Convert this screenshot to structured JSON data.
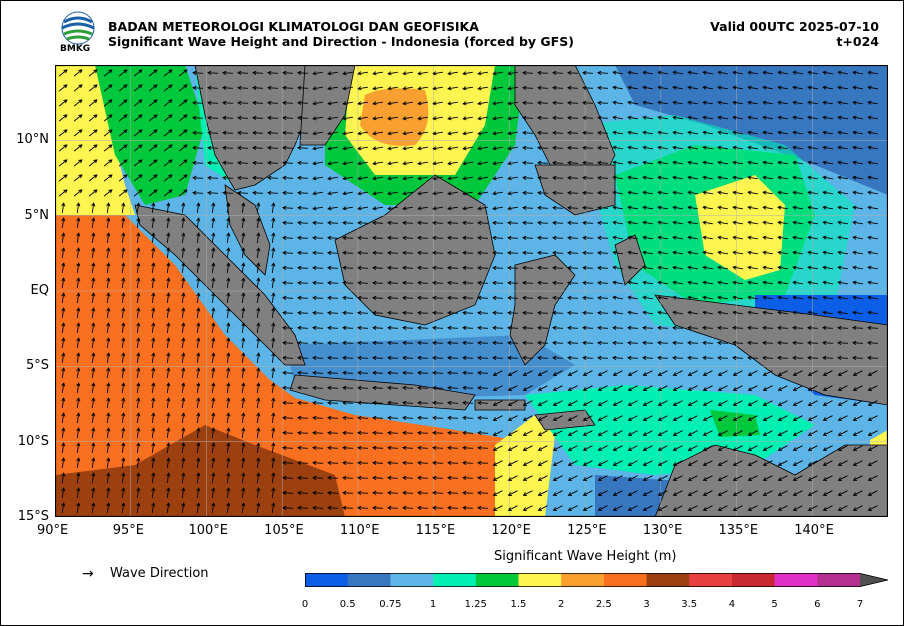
{
  "header": {
    "agency": "BADAN METEOROLOGI KLIMATOLOGI DAN GEOFISIKA",
    "subtitle": "Significant Wave Height and Direction - Indonesia (forced by GFS)",
    "valid": "Valid 00UTC 2025-07-10",
    "lead": "t+024",
    "logo_text": "BMKG"
  },
  "map": {
    "lon_range": [
      90,
      145
    ],
    "lat_range": [
      -15,
      15
    ],
    "x_ticks": [
      "90°E",
      "95°E",
      "100°E",
      "105°E",
      "110°E",
      "115°E",
      "120°E",
      "125°E",
      "130°E",
      "135°E",
      "140°E"
    ],
    "y_ticks": [
      "10°N",
      "5°N",
      "EQ",
      "5°S",
      "10°S",
      "15°S"
    ],
    "land_color": "#808080",
    "gridlines": true
  },
  "legend": {
    "arrow_glyph": "→",
    "label": "Wave Direction"
  },
  "colorbar": {
    "title": "Significant Wave Height (m)",
    "labels": [
      "0",
      "0.5",
      "0.75",
      "1",
      "1.25",
      "1.5",
      "2",
      "2.5",
      "3",
      "3.5",
      "4",
      "5",
      "6",
      "7"
    ],
    "colors": [
      "#0d5ee6",
      "#3677c0",
      "#5cb5e6",
      "#00f0b4",
      "#00c83c",
      "#fff550",
      "#f9a030",
      "#f87020",
      "#9c4010",
      "#e84040",
      "#c82830",
      "#e030c8",
      "#b43090"
    ]
  }
}
